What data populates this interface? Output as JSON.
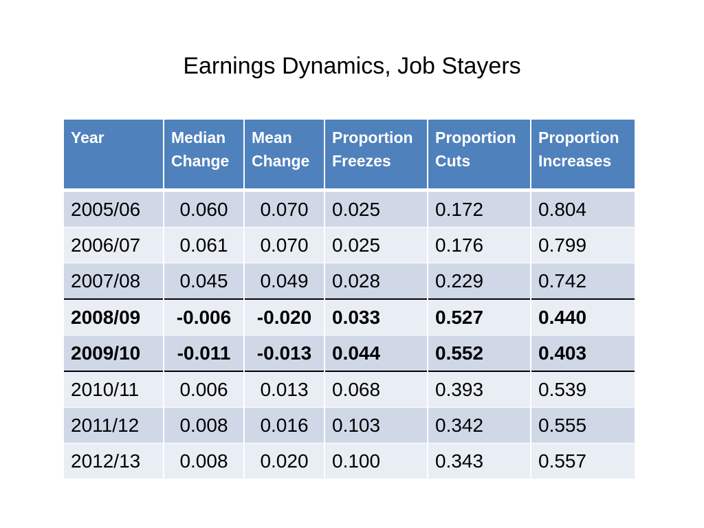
{
  "title": "Earnings Dynamics, Job Stayers",
  "table": {
    "headers": [
      "Year",
      "Median Change",
      "Mean Change",
      "Proportion Freezes",
      "Proportion Cuts",
      "Proportion Increases"
    ],
    "header_lines": [
      [
        "Year",
        ""
      ],
      [
        "Median",
        "Change"
      ],
      [
        "Mean",
        "Change"
      ],
      [
        "Proportion",
        "Freezes"
      ],
      [
        "Proportion",
        "Cuts"
      ],
      [
        "Proportion",
        "Increases"
      ]
    ],
    "rows": [
      {
        "year": "2005/06",
        "median": "0.060",
        "mean": "0.070",
        "freezes": "0.025",
        "cuts": "0.172",
        "increases": "0.804"
      },
      {
        "year": "2006/07",
        "median": "0.061",
        "mean": "0.070",
        "freezes": "0.025",
        "cuts": "0.176",
        "increases": "0.799"
      },
      {
        "year": "2007/08",
        "median": "0.045",
        "mean": "0.049",
        "freezes": "0.028",
        "cuts": "0.229",
        "increases": "0.742"
      },
      {
        "year": "2008/09",
        "median": "-0.006",
        "mean": "-0.020",
        "freezes": "0.033",
        "cuts": "0.527",
        "increases": "0.440"
      },
      {
        "year": "2009/10",
        "median": "-0.011",
        "mean": "-0.013",
        "freezes": "0.044",
        "cuts": "0.552",
        "increases": "0.403"
      },
      {
        "year": "2010/11",
        "median": "0.006",
        "mean": "0.013",
        "freezes": "0.068",
        "cuts": "0.393",
        "increases": "0.539"
      },
      {
        "year": "2011/12",
        "median": "0.008",
        "mean": "0.016",
        "freezes": "0.103",
        "cuts": "0.342",
        "increases": "0.555"
      },
      {
        "year": "2012/13",
        "median": "0.008",
        "mean": "0.020",
        "freezes": "0.100",
        "cuts": "0.343",
        "increases": "0.557"
      }
    ],
    "highlighted_years": [
      "2008/09",
      "2009/10"
    ],
    "colors": {
      "header_bg": "#4f81bd",
      "header_text": "#ffffff",
      "row_odd": "#d0d8e8",
      "row_even": "#e9edf4",
      "rule": "#000000"
    }
  }
}
